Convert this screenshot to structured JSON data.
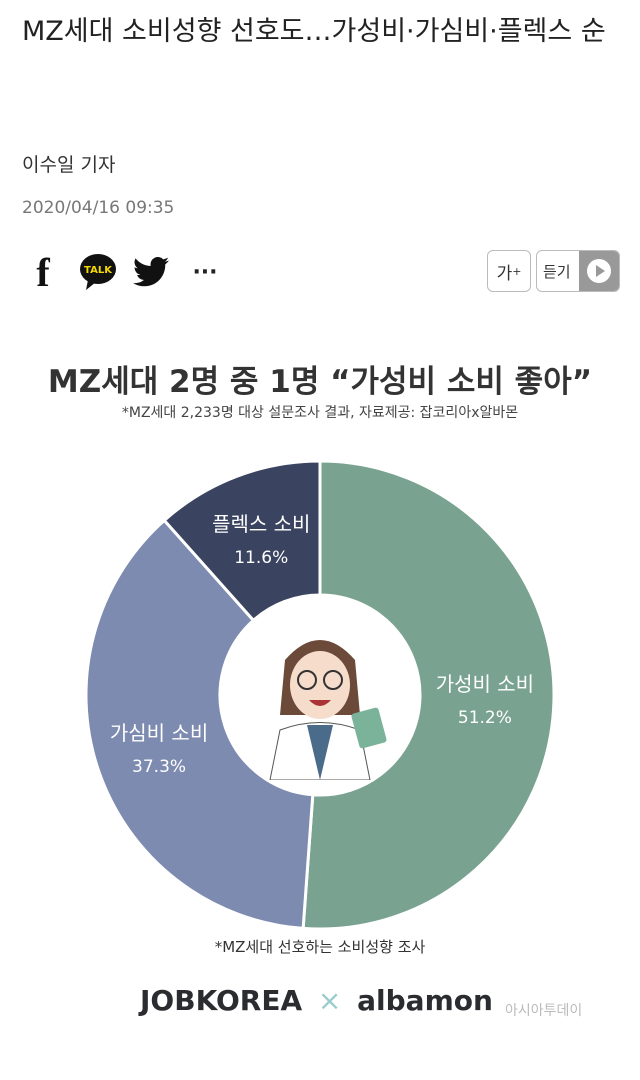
{
  "article": {
    "headline": "MZ세대 소비성향 선호도…가성비·가심비·플렉스 순",
    "reporter": "이수일 기자",
    "date": "2020/04/16 09:35"
  },
  "toolbar": {
    "share_icons": [
      "facebook-icon",
      "kakaotalk-icon",
      "twitter-icon",
      "more-icon"
    ],
    "kakao_label": "TALK",
    "more_label": "···",
    "font_size_label": "가",
    "font_size_sup": "+",
    "listen_label": "듣기"
  },
  "chart_data": {
    "type": "pie",
    "title": "MZ세대 2명 중 1명 “가성비 소비 좋아”",
    "subtitle": "*MZ세대 2,233명 대상 설문조사 결과, 자료제공: 잡코리아x알바몬",
    "footnote": "*MZ세대 선호하는 소비성향 조사",
    "donut": true,
    "slices": [
      {
        "label": "가성비 소비",
        "value": 51.2,
        "value_label": "51.2%",
        "color": "#79a390"
      },
      {
        "label": "가심비 소비",
        "value": 37.3,
        "value_label": "37.3%",
        "color": "#7d8bb0"
      },
      {
        "label": "플렉스 소비",
        "value": 11.6,
        "value_label": "11.6%",
        "color": "#3a4460"
      }
    ]
  },
  "logos": {
    "jobkorea": "JOBKOREA",
    "x": "×",
    "albamon": "albamon",
    "watermark": "아시아투데이"
  }
}
